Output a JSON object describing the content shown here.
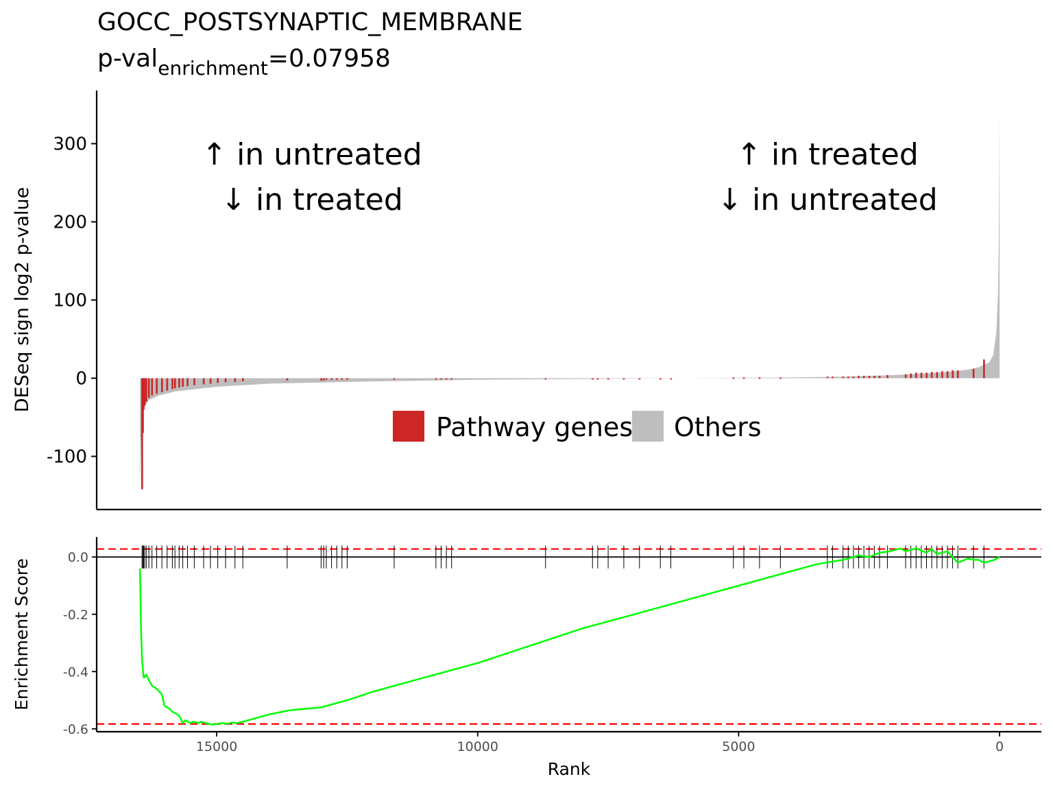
{
  "title": {
    "main": "GOCC_POSTSYNAPTIC_MEMBRANE",
    "pval_prefix": "p-val",
    "pval_subscript": "enrichment",
    "pval_value": "=0.07958"
  },
  "colors": {
    "pathway": "#cc2626",
    "others": "#bebebe",
    "running_score": "#00ff00",
    "threshold_line": "#ff0000",
    "axis": "#000000"
  },
  "legend": {
    "pathway_label": "Pathway genes",
    "others_label": "Others"
  },
  "annotations": {
    "left_line1": "↑ in untreated",
    "left_line2": "↓ in treated",
    "right_line1": "↑ in treated",
    "right_line2": "↓ in untreated"
  },
  "chart_data": [
    {
      "type": "bar",
      "panel": "top",
      "ylabel": "DESeq sign log2 p-value",
      "xlim": [
        17300,
        -800
      ],
      "ylim": [
        -168,
        368
      ],
      "yticks": [
        -100,
        0,
        100,
        200,
        300
      ],
      "ytick_labels": [
        "-100",
        "0",
        "100",
        "200",
        "300"
      ],
      "grid": false,
      "legend_position": "center",
      "n_genes": 16470,
      "series": [
        {
          "name": "Others",
          "color": "#bebebe",
          "profile_x": [
            16470,
            16450,
            16400,
            16300,
            16100,
            15800,
            15000,
            14000,
            12000,
            10000,
            8000,
            6000,
            4000,
            3000,
            2000,
            1500,
            1000,
            600,
            400,
            200,
            120,
            60,
            30,
            15,
            5,
            0
          ],
          "profile_y": [
            -145,
            -80,
            -38,
            -28,
            -22,
            -17,
            -11,
            -7,
            -4,
            -2,
            -1,
            0,
            1,
            2,
            4,
            6,
            8,
            11,
            14,
            20,
            30,
            60,
            110,
            180,
            280,
            345
          ]
        },
        {
          "name": "Pathway genes",
          "color": "#cc2626",
          "x": [
            16430,
            16415,
            16400,
            16380,
            16350,
            16300,
            16240,
            16150,
            16050,
            15950,
            15850,
            15800,
            15720,
            15650,
            15560,
            15430,
            15250,
            15120,
            14980,
            14830,
            14650,
            14500,
            13650,
            13000,
            12950,
            12900,
            12800,
            12700,
            12600,
            12500,
            11600,
            10800,
            10700,
            10600,
            10500,
            8700,
            7800,
            7700,
            7500,
            7200,
            6900,
            6500,
            6300,
            5100,
            4900,
            4600,
            4200,
            3300,
            3200,
            3000,
            2900,
            2800,
            2700,
            2600,
            2500,
            2400,
            2300,
            2150,
            1800,
            1700,
            1600,
            1500,
            1400,
            1300,
            1200,
            1100,
            1000,
            900,
            800,
            500,
            300
          ],
          "values": [
            -142,
            -70,
            -40,
            -35,
            -30,
            -25,
            -22,
            -20,
            -18,
            -16,
            -14,
            -13,
            -12,
            -11,
            -10,
            -9,
            -8,
            -7,
            -6,
            -5,
            -5,
            -4,
            -3,
            -3,
            -3,
            -2,
            -2,
            -2,
            -2,
            -2,
            -1,
            -1,
            -1,
            -1,
            -1,
            -1,
            -1,
            -1,
            -1,
            -1,
            -1,
            0,
            0,
            1,
            1,
            1,
            1,
            2,
            2,
            2,
            2,
            2,
            3,
            3,
            3,
            3,
            3,
            4,
            5,
            6,
            7,
            7,
            7,
            8,
            8,
            9,
            9,
            10,
            10,
            12,
            24
          ]
        }
      ]
    },
    {
      "type": "line",
      "panel": "bottom",
      "xlabel": "Rank",
      "ylabel": "Enrichment Score",
      "xlim": [
        17300,
        -800
      ],
      "ylim": [
        -0.61,
        0.07
      ],
      "xticks": [
        15000,
        10000,
        5000,
        0
      ],
      "xtick_labels": [
        "15000",
        "10000",
        "5000",
        "0"
      ],
      "yticks": [
        0.0,
        -0.2,
        -0.4,
        -0.6
      ],
      "ytick_labels": [
        "0.0",
        "-0.2",
        "-0.4",
        "-0.6"
      ],
      "grid": false,
      "thresholds": [
        0.028,
        -0.583
      ],
      "series": [
        {
          "name": "Enrichment Score",
          "color": "#00ff00",
          "x": [
            16470,
            16450,
            16430,
            16400,
            16380,
            16350,
            16300,
            16240,
            16150,
            16050,
            16000,
            15900,
            15850,
            15750,
            15700,
            15650,
            15600,
            15500,
            15450,
            15350,
            15300,
            15200,
            15100,
            15000,
            14900,
            14800,
            14700,
            14600,
            14500,
            14300,
            14000,
            13600,
            13000,
            12500,
            12000,
            11000,
            10000,
            9000,
            8000,
            7000,
            6000,
            5000,
            4000,
            3500,
            3000,
            2700,
            2500,
            2300,
            2100,
            1900,
            1800,
            1600,
            1400,
            1300,
            1200,
            1000,
            900,
            800,
            600,
            500,
            400,
            300,
            200,
            100,
            0
          ],
          "values": [
            -0.04,
            -0.25,
            -0.36,
            -0.42,
            -0.42,
            -0.41,
            -0.43,
            -0.45,
            -0.46,
            -0.48,
            -0.52,
            -0.53,
            -0.54,
            -0.55,
            -0.56,
            -0.58,
            -0.57,
            -0.58,
            -0.575,
            -0.58,
            -0.575,
            -0.58,
            -0.585,
            -0.583,
            -0.58,
            -0.582,
            -0.578,
            -0.58,
            -0.575,
            -0.565,
            -0.55,
            -0.535,
            -0.525,
            -0.5,
            -0.47,
            -0.42,
            -0.37,
            -0.31,
            -0.25,
            -0.2,
            -0.15,
            -0.1,
            -0.05,
            -0.025,
            -0.01,
            0.005,
            0.0,
            0.015,
            0.02,
            0.03,
            0.02,
            0.03,
            0.015,
            0.028,
            0.01,
            0.02,
            0.0,
            -0.02,
            -0.005,
            -0.01,
            -0.01,
            -0.02,
            -0.015,
            -0.01,
            0.0
          ]
        }
      ],
      "pathway_gene_ranks": [
        16430,
        16415,
        16400,
        16380,
        16350,
        16300,
        16240,
        16150,
        16050,
        15950,
        15850,
        15800,
        15720,
        15650,
        15560,
        15430,
        15250,
        15120,
        14980,
        14830,
        14650,
        14500,
        13650,
        13000,
        12950,
        12900,
        12800,
        12700,
        12600,
        12500,
        11600,
        10800,
        10700,
        10600,
        10500,
        8700,
        7800,
        7700,
        7500,
        7200,
        6900,
        6500,
        6300,
        5100,
        4900,
        4600,
        4200,
        3300,
        3200,
        3000,
        2900,
        2800,
        2700,
        2600,
        2500,
        2400,
        2300,
        2150,
        1800,
        1700,
        1600,
        1500,
        1400,
        1300,
        1200,
        1100,
        1000,
        900,
        800,
        500,
        300
      ]
    }
  ]
}
